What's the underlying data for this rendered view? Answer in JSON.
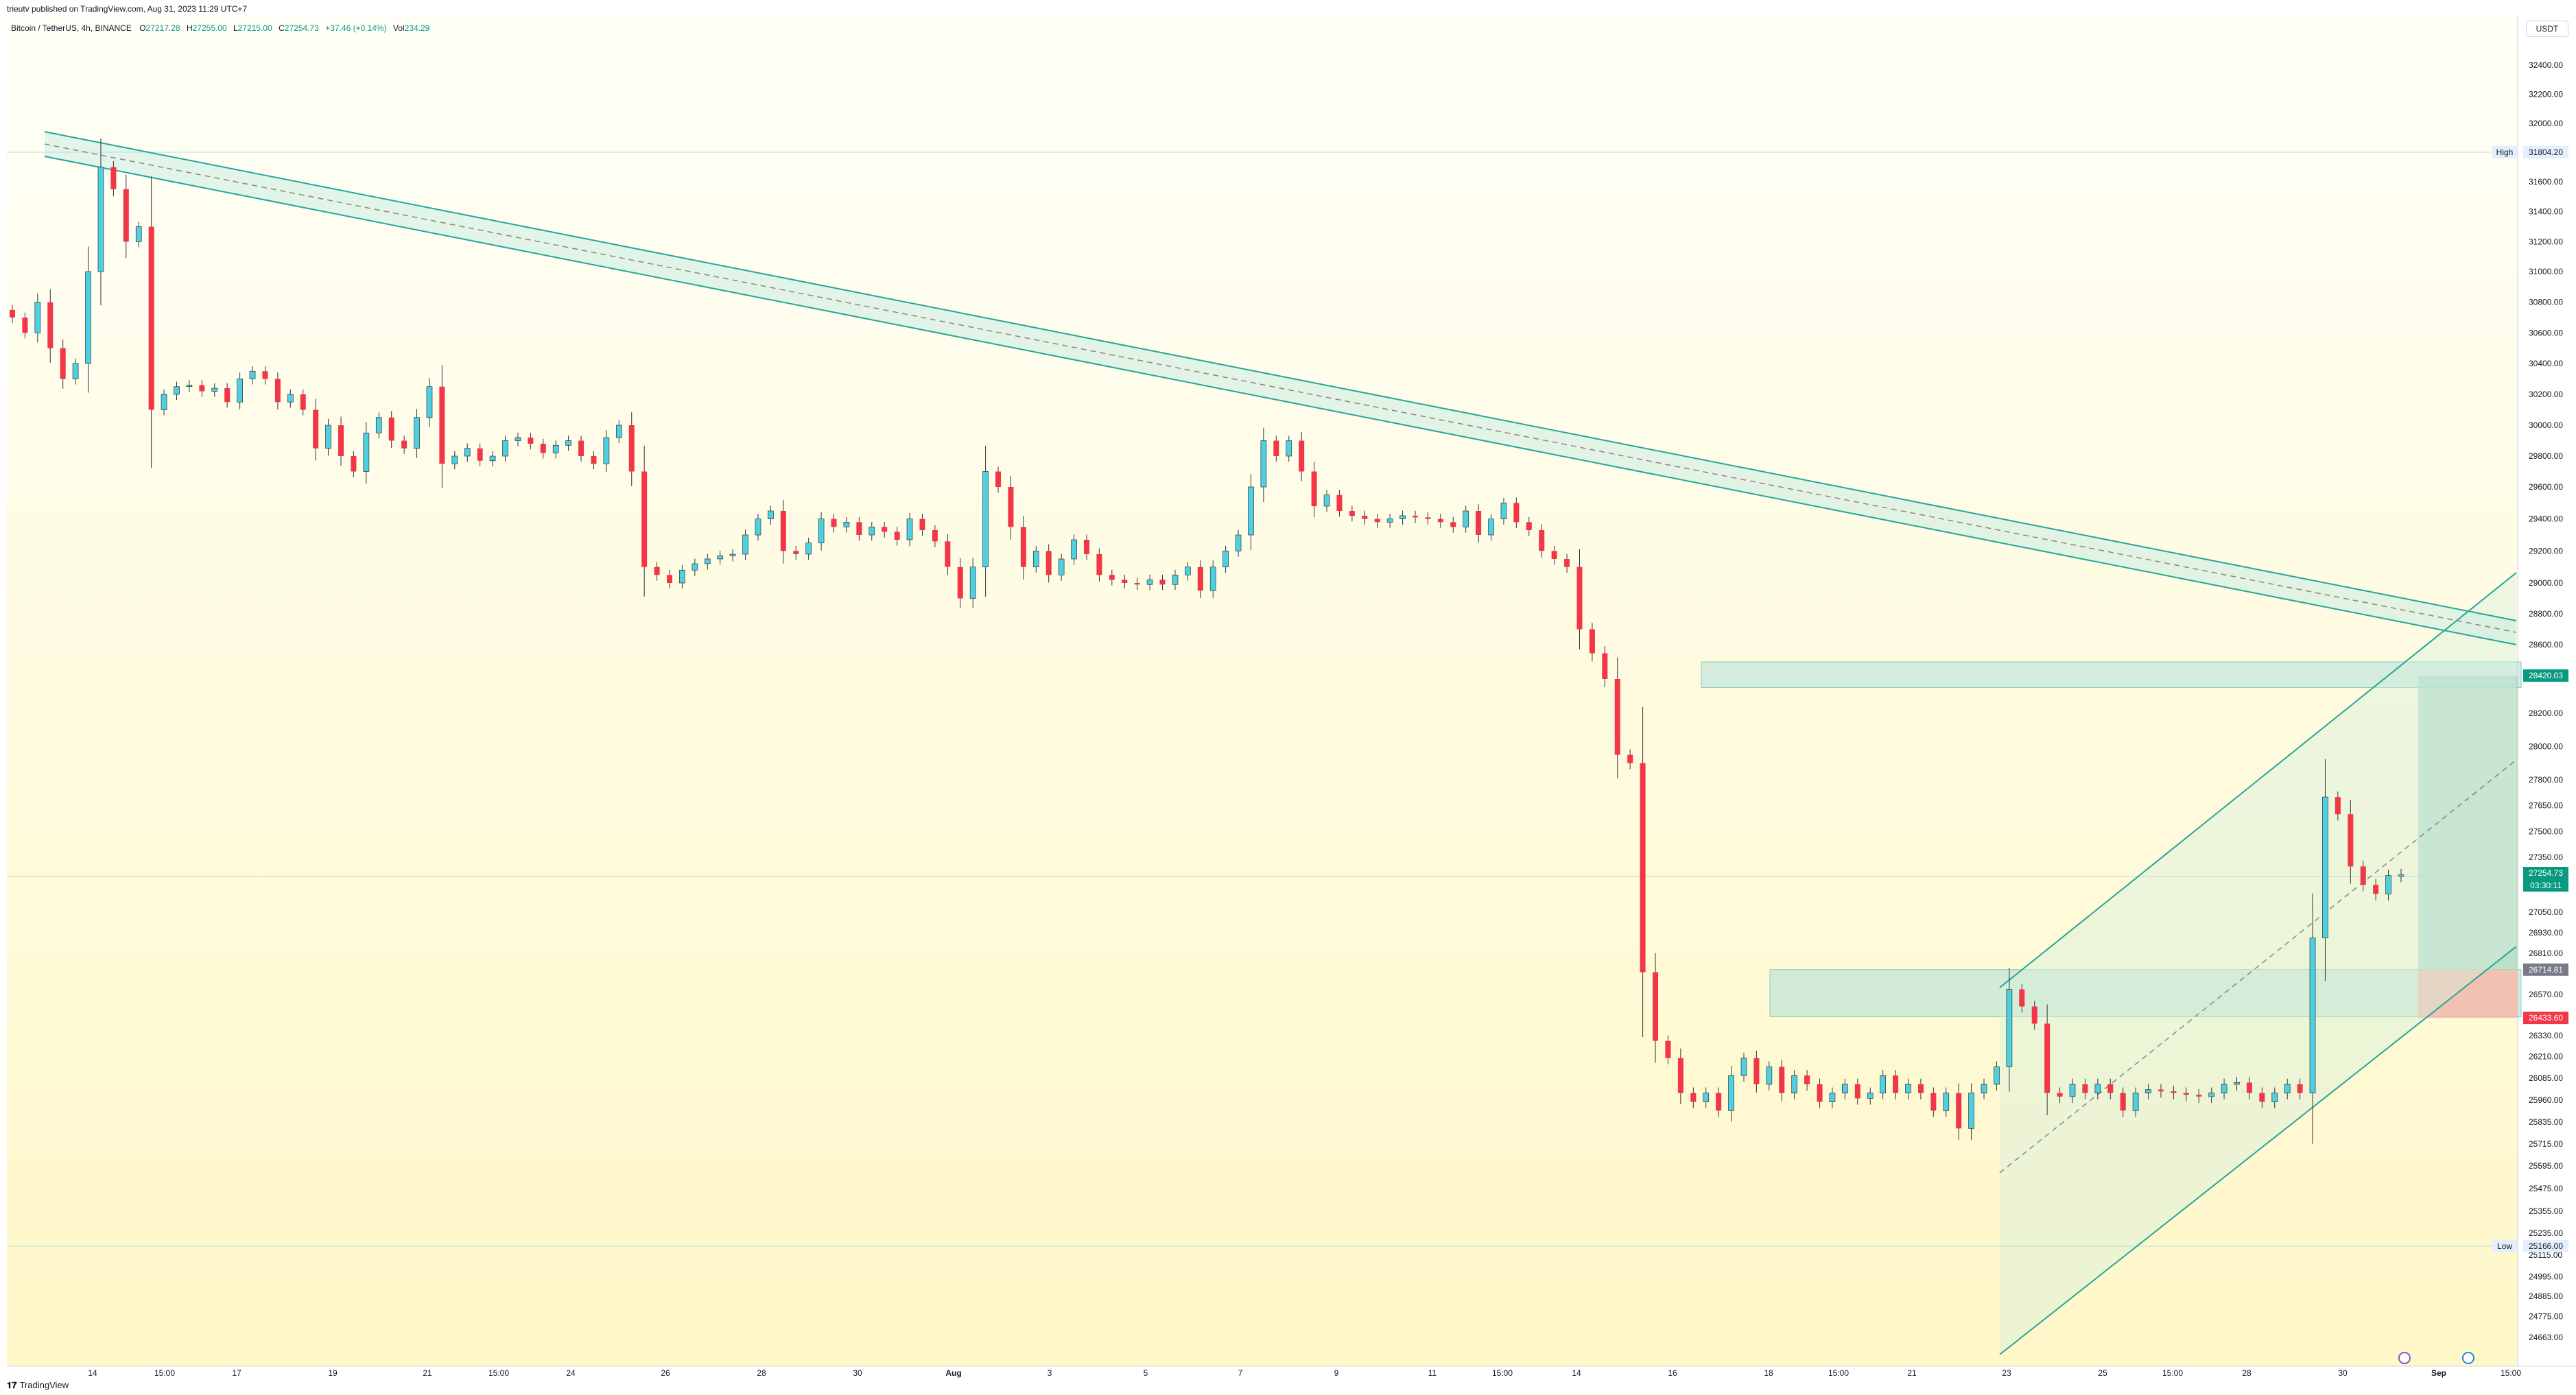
{
  "header": {
    "published": "trieutv published on TradingView.com, Aug 31, 2023 11:29 UTC+7"
  },
  "legend": {
    "symbol": "Bitcoin / TetherUS, 4h, BINANCE",
    "o_label": "O",
    "o": "27217.28",
    "h_label": "H",
    "h": "27255.00",
    "l_label": "L",
    "l": "27215.00",
    "c_label": "C",
    "c": "27254.73",
    "change": "+37.46 (+0.14%)",
    "vol_label": "Vol",
    "vol": "234.29"
  },
  "currency": "USDT",
  "footer": {
    "brand": "TradingView"
  },
  "colors": {
    "up": "#4dd0e1",
    "down": "#f23645",
    "channel": "#26a69a",
    "zone": "#b2dfdb",
    "bg_top": "#fffff8",
    "bg_bottom": "#fff7c8"
  },
  "chart_data": {
    "type": "candlestick",
    "symbol": "Bitcoin / TetherUS",
    "interval": "4h",
    "y_ticks": [
      "32400.00",
      "32200.00",
      "32000.00",
      "31600.00",
      "31400.00",
      "31200.00",
      "31000.00",
      "30800.00",
      "30600.00",
      "30400.00",
      "30200.00",
      "30000.00",
      "29800.00",
      "29600.00",
      "29400.00",
      "29200.00",
      "29000.00",
      "28800.00",
      "28600.00",
      "28200.00",
      "28000.00",
      "27800.00",
      "27650.00",
      "27500.00",
      "27350.00",
      "27050.00",
      "26930.00",
      "26810.00",
      "26570.00",
      "26330.00",
      "26210.00",
      "26085.00",
      "25960.00",
      "25835.00",
      "25715.00",
      "25595.00",
      "25475.00",
      "25355.00",
      "25235.00",
      "25115.00",
      "24995.00",
      "24885.00",
      "24775.00",
      "24663.00"
    ],
    "x_ticks": [
      "14",
      "15:00",
      "17",
      "19",
      "21",
      "15:00",
      "24",
      "26",
      "28",
      "30",
      "Aug",
      "3",
      "5",
      "7",
      "9",
      "11",
      "15:00",
      "14",
      "16",
      "18",
      "15:00",
      "21",
      "23",
      "25",
      "15:00",
      "28",
      "30",
      "Sep",
      "15:00"
    ],
    "high": {
      "label": "High",
      "value": "31804.20"
    },
    "low": {
      "label": "Low",
      "value": "25166.00"
    },
    "price_badges": [
      {
        "value": "28420.03",
        "kind": "target"
      },
      {
        "value": "27254.73",
        "kind": "last"
      },
      {
        "value": "03:30:11",
        "kind": "countdown"
      },
      {
        "value": "26714.81",
        "kind": "entry"
      },
      {
        "value": "26433.60",
        "kind": "stop"
      }
    ],
    "closes": [
      30700,
      30600,
      30800,
      30500,
      30300,
      30400,
      31000,
      31700,
      31550,
      31200,
      31300,
      30100,
      30200,
      30250,
      30260,
      30220,
      30240,
      30150,
      30300,
      30350,
      30300,
      30150,
      30200,
      30100,
      29850,
      30000,
      29800,
      29700,
      29950,
      30050,
      29900,
      29850,
      30050,
      30250,
      29750,
      29800,
      29850,
      29770,
      29800,
      29900,
      29920,
      29880,
      29820,
      29870,
      29900,
      29800,
      29750,
      29920,
      30000,
      29700,
      29100,
      29050,
      29000,
      29080,
      29120,
      29150,
      29170,
      29180,
      29300,
      29400,
      29450,
      29200,
      29180,
      29250,
      29400,
      29350,
      29380,
      29300,
      29350,
      29320,
      29270,
      29400,
      29330,
      29260,
      29100,
      28900,
      29100,
      29700,
      29600,
      29350,
      29100,
      29200,
      29050,
      29150,
      29270,
      29180,
      29050,
      29020,
      29000,
      28990,
      29020,
      28990,
      29050,
      29100,
      28950,
      29100,
      29200,
      29300,
      29600,
      29900,
      29800,
      29900,
      29700,
      29480,
      29550,
      29450,
      29420,
      29400,
      29380,
      29400,
      29420,
      29410,
      29400,
      29380,
      29350,
      29450,
      29300,
      29400,
      29500,
      29380,
      29330,
      29200,
      29150,
      29100,
      28700,
      28550,
      28400,
      27950,
      27900,
      26700,
      26300,
      26200,
      26000,
      25950,
      26000,
      25900,
      26100,
      26200,
      26050,
      26150,
      26000,
      26100,
      26050,
      25950,
      26000,
      26050,
      25970,
      26000,
      26100,
      26000,
      26050,
      26000,
      25900,
      26000,
      25800,
      26000,
      26050,
      26150,
      26600,
      26500,
      26400,
      26000,
      25980,
      26050,
      26000,
      26050,
      26000,
      25900,
      26000,
      26020,
      26010,
      26000,
      25990,
      25980,
      26000,
      26050,
      26060,
      26000,
      25950,
      26000,
      26050,
      26000,
      26900,
      27700,
      27600,
      27300,
      27200,
      27150,
      27250,
      27254.73
    ],
    "trendlines": [
      {
        "name": "descending-channel"
      },
      {
        "name": "ascending-channel"
      }
    ],
    "zones": [
      {
        "name": "supply-zone",
        "from": 28350,
        "to": 28500
      },
      {
        "name": "demand-zone",
        "from": 26440,
        "to": 26715
      }
    ],
    "position": {
      "entry": 26714.81,
      "target": 28420.03,
      "stop": 26433.6
    }
  }
}
